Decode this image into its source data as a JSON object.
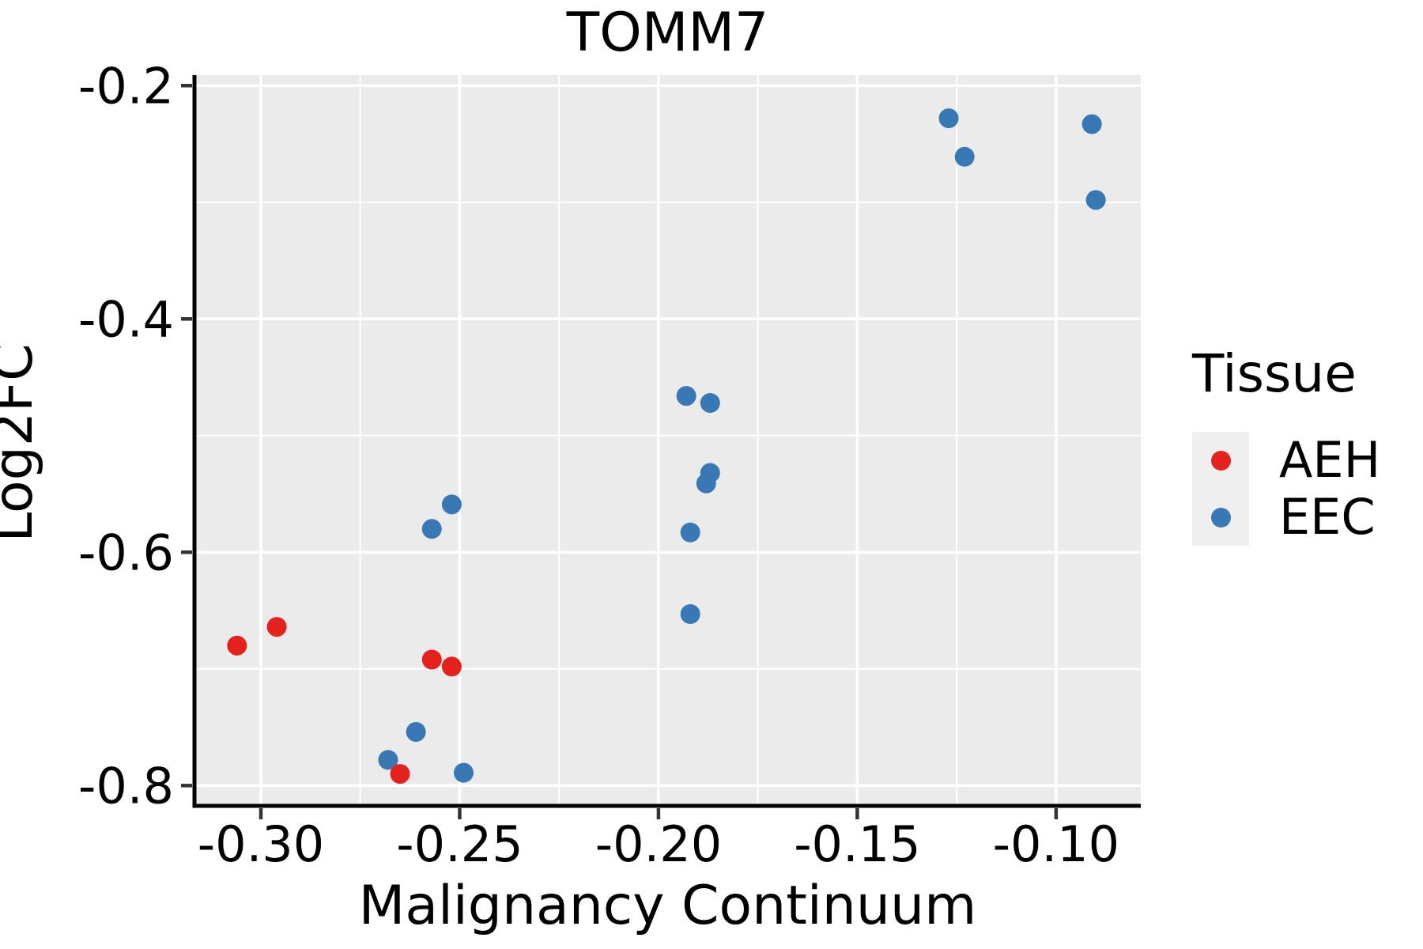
{
  "title": "TOMM7",
  "axes": {
    "x_label": "Malignancy Continuum",
    "y_label": "Log2FC"
  },
  "legend": {
    "title": "Tissue",
    "entries": [
      {
        "label": "AEH",
        "color": "#E4211C"
      },
      {
        "label": "EEC",
        "color": "#3878B4"
      }
    ]
  },
  "colors": {
    "panel_bg": "#EBEBEB",
    "grid": "#FFFFFF",
    "axis_line": "#000000",
    "tick_mark": "#333333",
    "text": "#000000",
    "legend_key_bg": "#EFEFEF",
    "aeh": "#E4211C",
    "eec": "#3878B4"
  },
  "chart_data": {
    "type": "scatter",
    "title": "TOMM7",
    "xlabel": "Malignancy Continuum",
    "ylabel": "Log2FC",
    "xlim": [
      -0.3167,
      -0.0787
    ],
    "ylim": [
      -0.8174,
      -0.191
    ],
    "grid": "major and minor white gridlines on gray panel",
    "legend_position": "right",
    "x_ticks": [
      {
        "value": -0.3,
        "label": "-0.30"
      },
      {
        "value": -0.25,
        "label": "-0.25"
      },
      {
        "value": -0.2,
        "label": "-0.20"
      },
      {
        "value": -0.15,
        "label": "-0.15"
      },
      {
        "value": -0.1,
        "label": "-0.10"
      }
    ],
    "y_ticks": [
      {
        "value": -0.2,
        "label": "-0.2"
      },
      {
        "value": -0.4,
        "label": "-0.4"
      },
      {
        "value": -0.6,
        "label": "-0.6"
      },
      {
        "value": -0.8,
        "label": "-0.8"
      }
    ],
    "x_minor_ticks": [
      -0.275,
      -0.225,
      -0.175,
      -0.125
    ],
    "y_minor_ticks": [
      -0.3,
      -0.5,
      -0.7
    ],
    "series": [
      {
        "name": "EEC",
        "color": "#3878B4",
        "points": [
          {
            "x": -0.252,
            "y": -0.559
          },
          {
            "x": -0.257,
            "y": -0.58
          },
          {
            "x": -0.261,
            "y": -0.754
          },
          {
            "x": -0.268,
            "y": -0.778
          },
          {
            "x": -0.249,
            "y": -0.789
          },
          {
            "x": -0.193,
            "y": -0.466
          },
          {
            "x": -0.187,
            "y": -0.472
          },
          {
            "x": -0.187,
            "y": -0.532
          },
          {
            "x": -0.188,
            "y": -0.541
          },
          {
            "x": -0.192,
            "y": -0.583
          },
          {
            "x": -0.192,
            "y": -0.653
          },
          {
            "x": -0.127,
            "y": -0.228
          },
          {
            "x": -0.123,
            "y": -0.261
          },
          {
            "x": -0.091,
            "y": -0.233
          },
          {
            "x": -0.09,
            "y": -0.298
          }
        ]
      },
      {
        "name": "AEH",
        "color": "#E4211C",
        "points": [
          {
            "x": -0.306,
            "y": -0.68
          },
          {
            "x": -0.296,
            "y": -0.664
          },
          {
            "x": -0.257,
            "y": -0.692
          },
          {
            "x": -0.252,
            "y": -0.698
          },
          {
            "x": -0.265,
            "y": -0.79
          }
        ]
      }
    ]
  }
}
